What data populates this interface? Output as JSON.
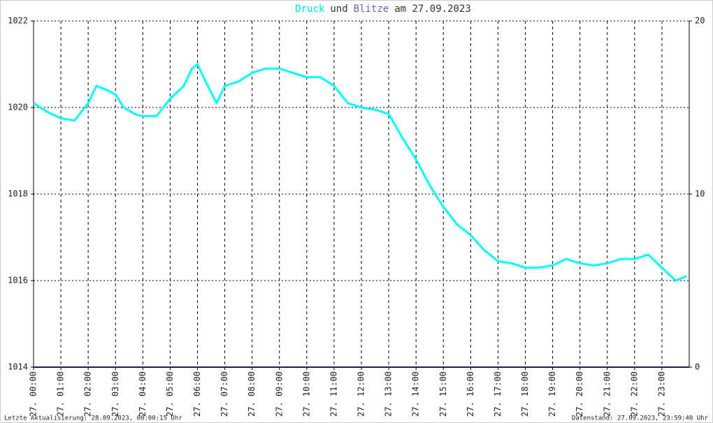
{
  "chart_data": {
    "type": "line",
    "title_parts": [
      {
        "text": "Druck",
        "color": "#00e5e5"
      },
      {
        "text": "und",
        "color": "#333333"
      },
      {
        "text": "Blitze",
        "color": "#7060c0"
      },
      {
        "text": "am 27.09.2023",
        "color": "#333333"
      }
    ],
    "footer_left": "Letzte Aktualisierung: 28.09.2023, 00:00:15 Uhr",
    "footer_right": "Datenstand: 27.09.2023, 23:59:40 Uhr",
    "xlim": [
      0,
      24
    ],
    "xticks": [
      {
        "value": 0,
        "label": "27. 00:00"
      },
      {
        "value": 1,
        "label": "27. 01:00"
      },
      {
        "value": 2,
        "label": "27. 02:00"
      },
      {
        "value": 3,
        "label": "27. 03:00"
      },
      {
        "value": 4,
        "label": "27. 04:00"
      },
      {
        "value": 5,
        "label": "27. 05:00"
      },
      {
        "value": 6,
        "label": "27. 06:00"
      },
      {
        "value": 7,
        "label": "27. 07:00"
      },
      {
        "value": 8,
        "label": "27. 08:00"
      },
      {
        "value": 9,
        "label": "27. 09:00"
      },
      {
        "value": 10,
        "label": "27. 10:00"
      },
      {
        "value": 11,
        "label": "27. 11:00"
      },
      {
        "value": 12,
        "label": "27. 12:00"
      },
      {
        "value": 13,
        "label": "27. 13:00"
      },
      {
        "value": 14,
        "label": "27. 14:00"
      },
      {
        "value": 15,
        "label": "27. 15:00"
      },
      {
        "value": 16,
        "label": "27. 16:00"
      },
      {
        "value": 17,
        "label": "27. 17:00"
      },
      {
        "value": 18,
        "label": "27. 18:00"
      },
      {
        "value": 19,
        "label": "27. 19:00"
      },
      {
        "value": 20,
        "label": "27. 20:00"
      },
      {
        "value": 21,
        "label": "27. 21:00"
      },
      {
        "value": 22,
        "label": "27. 22:00"
      },
      {
        "value": 23,
        "label": "27. 23:00"
      }
    ],
    "ylim": [
      1014,
      1022
    ],
    "yticks": [
      1014,
      1016,
      1018,
      1020,
      1022
    ],
    "y2lim": [
      0,
      20
    ],
    "y2ticks": [
      0,
      10,
      20
    ],
    "grid": true,
    "series": [
      {
        "name": "Druck",
        "color": "#00ffff",
        "x": [
          0,
          0.5,
          1,
          1.5,
          2,
          2.3,
          2.7,
          3,
          3.3,
          3.7,
          4,
          4.5,
          5,
          5.5,
          5.8,
          6,
          6.3,
          6.7,
          7,
          7.5,
          8,
          8.5,
          9,
          9.5,
          10,
          10.5,
          11,
          11.5,
          12,
          12.5,
          13,
          13.5,
          14,
          14.5,
          15,
          15.5,
          16,
          16.5,
          17,
          17.5,
          18,
          18.5,
          19,
          19.5,
          20,
          20.5,
          21,
          21.5,
          22,
          22.5,
          23,
          23.5,
          23.9
        ],
        "values": [
          1020.1,
          1019.9,
          1019.75,
          1019.7,
          1020.1,
          1020.5,
          1020.4,
          1020.3,
          1020.0,
          1019.85,
          1019.8,
          1019.8,
          1020.2,
          1020.5,
          1020.9,
          1021.0,
          1020.6,
          1020.1,
          1020.5,
          1020.6,
          1020.8,
          1020.9,
          1020.9,
          1020.8,
          1020.7,
          1020.7,
          1020.5,
          1020.1,
          1020.0,
          1019.95,
          1019.85,
          1019.3,
          1018.8,
          1018.2,
          1017.7,
          1017.3,
          1017.05,
          1016.7,
          1016.45,
          1016.4,
          1016.3,
          1016.3,
          1016.35,
          1016.5,
          1016.4,
          1016.35,
          1016.4,
          1016.5,
          1016.5,
          1016.6,
          1016.3,
          1016.0,
          1016.1
        ]
      },
      {
        "name": "Blitze",
        "color": "#1a1a6e",
        "axis": "y2",
        "x": [
          0,
          24
        ],
        "values": [
          0,
          0
        ]
      }
    ]
  }
}
